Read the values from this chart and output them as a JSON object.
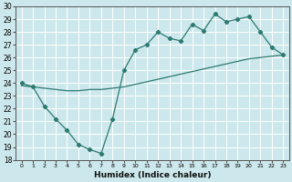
{
  "title": "",
  "xlabel": "Humidex (Indice chaleur)",
  "ylabel": "",
  "background_color": "#cce8ec",
  "grid_color": "#b0d4d8",
  "line_color": "#2d7a70",
  "xlim": [
    -0.5,
    23.5
  ],
  "ylim": [
    18,
    30
  ],
  "xticks": [
    0,
    1,
    2,
    3,
    4,
    5,
    6,
    7,
    8,
    9,
    10,
    11,
    12,
    13,
    14,
    15,
    16,
    17,
    18,
    19,
    20,
    21,
    22,
    23
  ],
  "yticks": [
    18,
    19,
    20,
    21,
    22,
    23,
    24,
    25,
    26,
    27,
    28,
    29,
    30
  ],
  "series1_x": [
    0,
    1,
    2,
    3,
    4,
    5,
    6,
    7,
    8,
    9,
    10,
    11,
    12,
    13,
    14,
    15,
    16,
    17,
    18,
    19,
    20,
    21,
    22,
    23
  ],
  "series1_y": [
    24.0,
    23.7,
    22.2,
    21.2,
    20.3,
    19.2,
    18.8,
    18.5,
    21.2,
    25.0,
    26.6,
    27.0,
    28.0,
    27.5,
    27.3,
    28.6,
    28.1,
    29.4,
    28.8,
    29.0,
    29.2,
    28.0,
    26.8,
    26.2
  ],
  "series2_x": [
    0,
    1,
    2,
    3,
    4,
    5,
    6,
    7,
    8,
    9,
    10,
    11,
    12,
    13,
    14,
    15,
    16,
    17,
    18,
    19,
    20,
    21,
    22,
    23
  ],
  "series2_y": [
    23.8,
    23.7,
    23.6,
    23.5,
    23.4,
    23.4,
    23.5,
    23.5,
    23.6,
    23.7,
    23.9,
    24.1,
    24.3,
    24.5,
    24.7,
    24.9,
    25.1,
    25.3,
    25.5,
    25.7,
    25.9,
    26.0,
    26.1,
    26.2
  ]
}
